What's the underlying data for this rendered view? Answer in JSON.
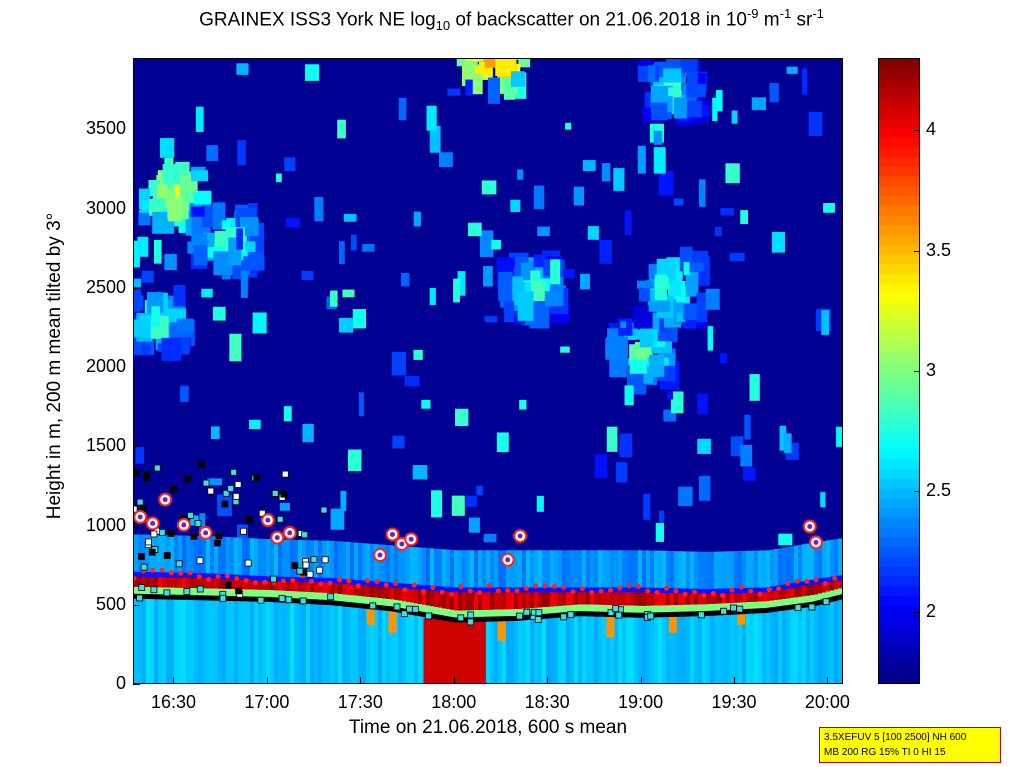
{
  "title": {
    "prefix": "GRAINEX ISS3 York NE log",
    "sub": "10",
    "middle": " of backscatter on 21.06.2018 in 10",
    "sup1": "-9",
    "unit1": " m",
    "sup2": "-1",
    "unit2": " sr",
    "sup3": "-1"
  },
  "chart_data": {
    "type": "heatmap",
    "xlabel": "Time on 21.06.2018, 600 s mean",
    "ylabel": "Height in m, 200 m mean tilted by 3°",
    "x_ticks": [
      "16:30",
      "17:00",
      "17:30",
      "18:00",
      "18:30",
      "19:00",
      "19:30",
      "20:00"
    ],
    "x_tick_minutes": [
      990,
      1020,
      1050,
      1080,
      1110,
      1140,
      1170,
      1200
    ],
    "xlim_minutes": [
      977,
      1205
    ],
    "y_ticks": [
      0,
      500,
      1000,
      1500,
      2000,
      2500,
      3000,
      3500
    ],
    "ylim": [
      0,
      3950
    ],
    "colorbar": {
      "colormap": "jet",
      "range": [
        1.7,
        4.3
      ],
      "ticks": [
        "2",
        "2.5",
        "3",
        "3.5",
        "4"
      ],
      "tick_values": [
        2,
        2.5,
        3,
        3.5,
        4
      ]
    },
    "layer_base_height": [
      [
        977,
        560
      ],
      [
        1000,
        550
      ],
      [
        1020,
        540
      ],
      [
        1040,
        520
      ],
      [
        1060,
        480
      ],
      [
        1080,
        410
      ],
      [
        1100,
        420
      ],
      [
        1120,
        450
      ],
      [
        1140,
        440
      ],
      [
        1160,
        450
      ],
      [
        1180,
        470
      ],
      [
        1195,
        510
      ],
      [
        1205,
        560
      ]
    ],
    "layer_top_height": [
      [
        977,
        700
      ],
      [
        1000,
        690
      ],
      [
        1020,
        670
      ],
      [
        1040,
        660
      ],
      [
        1060,
        630
      ],
      [
        1080,
        600
      ],
      [
        1100,
        600
      ],
      [
        1120,
        600
      ],
      [
        1140,
        600
      ],
      [
        1160,
        590
      ],
      [
        1180,
        600
      ],
      [
        1195,
        650
      ],
      [
        1205,
        680
      ]
    ],
    "high_markers": [
      [
        979,
        1060
      ],
      [
        983,
        1020
      ],
      [
        987,
        1170
      ],
      [
        993,
        1010
      ],
      [
        1000,
        960
      ],
      [
        1020,
        1040
      ],
      [
        1023,
        930
      ],
      [
        1027,
        960
      ],
      [
        1056,
        820
      ],
      [
        1060,
        950
      ],
      [
        1063,
        890
      ],
      [
        1066,
        920
      ],
      [
        1097,
        790
      ],
      [
        1101,
        940
      ],
      [
        1194,
        1000
      ],
      [
        1196,
        900
      ]
    ],
    "cloud_patches": [
      {
        "t": 990,
        "h": 3100,
        "value": 3.4
      },
      {
        "t": 1007,
        "h": 2800,
        "value": 3.1
      },
      {
        "t": 985,
        "h": 2300,
        "value": 3.0
      },
      {
        "t": 1093,
        "h": 3950,
        "value": 3.8
      },
      {
        "t": 1140,
        "h": 2100,
        "value": 3.1
      },
      {
        "t": 1105,
        "h": 2500,
        "value": 3.0
      },
      {
        "t": 1150,
        "h": 2500,
        "value": 3.1
      },
      {
        "t": 1150,
        "h": 3750,
        "value": 2.9
      }
    ],
    "note_box": {
      "line1": "3.5XEFUV 5 [100 2500] NH 600",
      "line2": "MB 200 RG 15% TI 0 HI 15"
    }
  }
}
